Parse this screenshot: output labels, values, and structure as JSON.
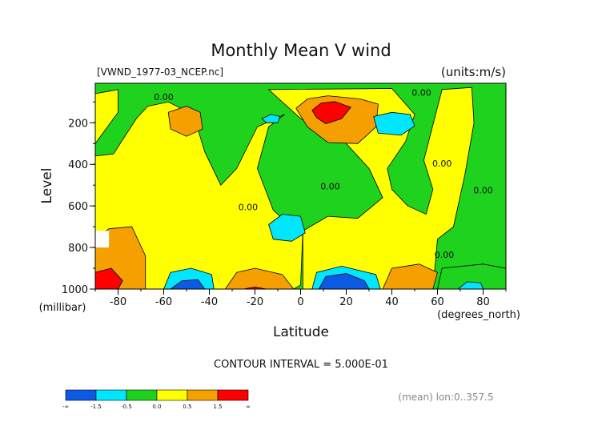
{
  "chart_data": {
    "type": "heatmap",
    "title": "Monthly Mean V wind",
    "dataset_label": "[VWND_1977-03_NCEP.nc]",
    "units_label": "(units:m/s)",
    "xlabel": "Latitude",
    "x_units": "(degrees_north)",
    "ylabel": "Level",
    "y_units": "(millibar)",
    "xlim": [
      -90,
      90
    ],
    "ylim": [
      1000,
      10
    ],
    "x_ticks": [
      -80,
      -60,
      -40,
      -20,
      0,
      20,
      40,
      60,
      80
    ],
    "y_ticks": [
      200,
      400,
      600,
      800,
      1000
    ],
    "contour_interval": "CONTOUR INTERVAL = 5.000E-01",
    "footer_note": "(mean) lon:0..357.5",
    "contour_labels": [
      {
        "text": "0.00",
        "lat": -60,
        "level": 90
      },
      {
        "text": "0.00",
        "lat": 53,
        "level": 70
      },
      {
        "text": "0.00",
        "lat": 62,
        "level": 410
      },
      {
        "text": "0.00",
        "lat": 80,
        "level": 540
      },
      {
        "text": "0.00",
        "lat": 13,
        "level": 520
      },
      {
        "text": "0.00",
        "lat": -23,
        "level": 620
      },
      {
        "text": "0.00",
        "lat": 63,
        "level": 850
      }
    ],
    "colorbar": {
      "bins": [
        {
          "color": "#0a5ae6",
          "label": "-∞"
        },
        {
          "color": "#00e6ff",
          "label": "-1.5"
        },
        {
          "color": "#1ed21e",
          "label": "-0.5"
        },
        {
          "color": "#ffff00",
          "label": "0.0"
        },
        {
          "color": "#f5a000",
          "label": "0.5"
        },
        {
          "color": "#ff0000",
          "label": "1.5"
        }
      ],
      "end_label": "∞"
    },
    "regions": [
      {
        "fill": "#1ed21e",
        "pts": [
          [
            -90,
            10
          ],
          [
            90,
            10
          ],
          [
            90,
            1000
          ],
          [
            -90,
            1000
          ]
        ]
      },
      {
        "fill": "#ffff00",
        "pts": [
          [
            -90,
            360
          ],
          [
            -82,
            350
          ],
          [
            -72,
            180
          ],
          [
            -67,
            120
          ],
          [
            -58,
            100
          ],
          [
            -47,
            160
          ],
          [
            -42,
            340
          ],
          [
            -35,
            500
          ],
          [
            -28,
            420
          ],
          [
            -19,
            220
          ],
          [
            -7,
            160
          ],
          [
            -14,
            220
          ],
          [
            -19,
            420
          ],
          [
            -12,
            620
          ],
          [
            -4,
            700
          ],
          [
            1,
            720
          ],
          [
            0,
            980
          ],
          [
            -3,
            1000
          ],
          [
            -90,
            1000
          ]
        ]
      },
      {
        "fill": "#ffff00",
        "pts": [
          [
            -14,
            40
          ],
          [
            40,
            35
          ],
          [
            50,
            160
          ],
          [
            46,
            290
          ],
          [
            38,
            420
          ],
          [
            40,
            520
          ],
          [
            47,
            600
          ],
          [
            55,
            640
          ],
          [
            58,
            520
          ],
          [
            54,
            380
          ],
          [
            62,
            40
          ],
          [
            75,
            30
          ],
          [
            76,
            200
          ],
          [
            72,
            450
          ],
          [
            67,
            700
          ],
          [
            60,
            760
          ],
          [
            58,
            1000
          ],
          [
            1,
            1000
          ],
          [
            1,
            720
          ],
          [
            12,
            650
          ],
          [
            25,
            660
          ],
          [
            36,
            560
          ],
          [
            30,
            420
          ],
          [
            20,
            300
          ],
          [
            0,
            180
          ]
        ]
      },
      {
        "fill": "#ffff00",
        "pts": [
          [
            -90,
            60
          ],
          [
            -80,
            40
          ],
          [
            -80,
            150
          ],
          [
            -90,
            300
          ]
        ]
      },
      {
        "fill": "#f5a000",
        "pts": [
          [
            -2,
            130
          ],
          [
            3,
            85
          ],
          [
            12,
            70
          ],
          [
            26,
            85
          ],
          [
            34,
            110
          ],
          [
            33,
            220
          ],
          [
            25,
            300
          ],
          [
            12,
            295
          ],
          [
            3,
            220
          ]
        ]
      },
      {
        "fill": "#ff0000",
        "pts": [
          [
            5,
            140
          ],
          [
            9,
            105
          ],
          [
            15,
            98
          ],
          [
            22,
            125
          ],
          [
            18,
            180
          ],
          [
            11,
            205
          ],
          [
            7,
            175
          ]
        ]
      },
      {
        "fill": "#f5a000",
        "pts": [
          [
            -58,
            150
          ],
          [
            -50,
            120
          ],
          [
            -44,
            150
          ],
          [
            -43,
            230
          ],
          [
            -50,
            265
          ],
          [
            -57,
            230
          ]
        ]
      },
      {
        "fill": "#f5a000",
        "pts": [
          [
            -90,
            760
          ],
          [
            -84,
            710
          ],
          [
            -74,
            700
          ],
          [
            -68,
            840
          ],
          [
            -68,
            1000
          ],
          [
            -90,
            1000
          ]
        ]
      },
      {
        "fill": "#ff0000",
        "pts": [
          [
            -90,
            920
          ],
          [
            -83,
            900
          ],
          [
            -78,
            960
          ],
          [
            -80,
            1000
          ],
          [
            -90,
            1000
          ]
        ]
      },
      {
        "fill": "#f5a000",
        "pts": [
          [
            -33,
            1000
          ],
          [
            -28,
            920
          ],
          [
            -20,
            900
          ],
          [
            -8,
            930
          ],
          [
            -3,
            1000
          ]
        ]
      },
      {
        "fill": "#ff0000",
        "pts": [
          [
            -25,
            1000
          ],
          [
            -20,
            990
          ],
          [
            -15,
            1000
          ]
        ]
      },
      {
        "fill": "#f5a000",
        "pts": [
          [
            36,
            1000
          ],
          [
            40,
            900
          ],
          [
            52,
            880
          ],
          [
            60,
            920
          ],
          [
            58,
            1000
          ]
        ]
      },
      {
        "fill": "#1ed21e",
        "pts": [
          [
            62,
            900
          ],
          [
            80,
            880
          ],
          [
            90,
            900
          ],
          [
            90,
            1000
          ],
          [
            60,
            1000
          ]
        ]
      },
      {
        "fill": "#00e6ff",
        "pts": [
          [
            -60,
            1000
          ],
          [
            -57,
            920
          ],
          [
            -48,
            900
          ],
          [
            -39,
            930
          ],
          [
            -38,
            1000
          ]
        ]
      },
      {
        "fill": "#0a5ae6",
        "pts": [
          [
            -57,
            1000
          ],
          [
            -52,
            960
          ],
          [
            -45,
            955
          ],
          [
            -42,
            1000
          ]
        ]
      },
      {
        "fill": "#00e6ff",
        "pts": [
          [
            5,
            1000
          ],
          [
            7,
            920
          ],
          [
            18,
            890
          ],
          [
            33,
            930
          ],
          [
            35,
            1000
          ]
        ]
      },
      {
        "fill": "#0a5ae6",
        "pts": [
          [
            8,
            1000
          ],
          [
            11,
            940
          ],
          [
            20,
            925
          ],
          [
            28,
            960
          ],
          [
            30,
            1000
          ]
        ]
      },
      {
        "fill": "#00e6ff",
        "pts": [
          [
            -17,
            180
          ],
          [
            -13,
            160
          ],
          [
            -9,
            170
          ],
          [
            -10,
            200
          ],
          [
            -15,
            200
          ]
        ]
      },
      {
        "fill": "#00e6ff",
        "pts": [
          [
            32,
            170
          ],
          [
            40,
            150
          ],
          [
            48,
            160
          ],
          [
            50,
            215
          ],
          [
            44,
            260
          ],
          [
            34,
            250
          ]
        ]
      },
      {
        "fill": "#00e6ff",
        "pts": [
          [
            -14,
            690
          ],
          [
            -8,
            640
          ],
          [
            0,
            650
          ],
          [
            2,
            730
          ],
          [
            -4,
            770
          ],
          [
            -12,
            760
          ]
        ]
      },
      {
        "fill": "#00e6ff",
        "pts": [
          [
            69,
            1000
          ],
          [
            73,
            965
          ],
          [
            79,
            970
          ],
          [
            80,
            1000
          ]
        ]
      },
      {
        "fill": "#ffffff",
        "pts": [
          [
            -90,
            720
          ],
          [
            -84,
            720
          ],
          [
            -84,
            800
          ],
          [
            -90,
            800
          ]
        ]
      }
    ]
  }
}
